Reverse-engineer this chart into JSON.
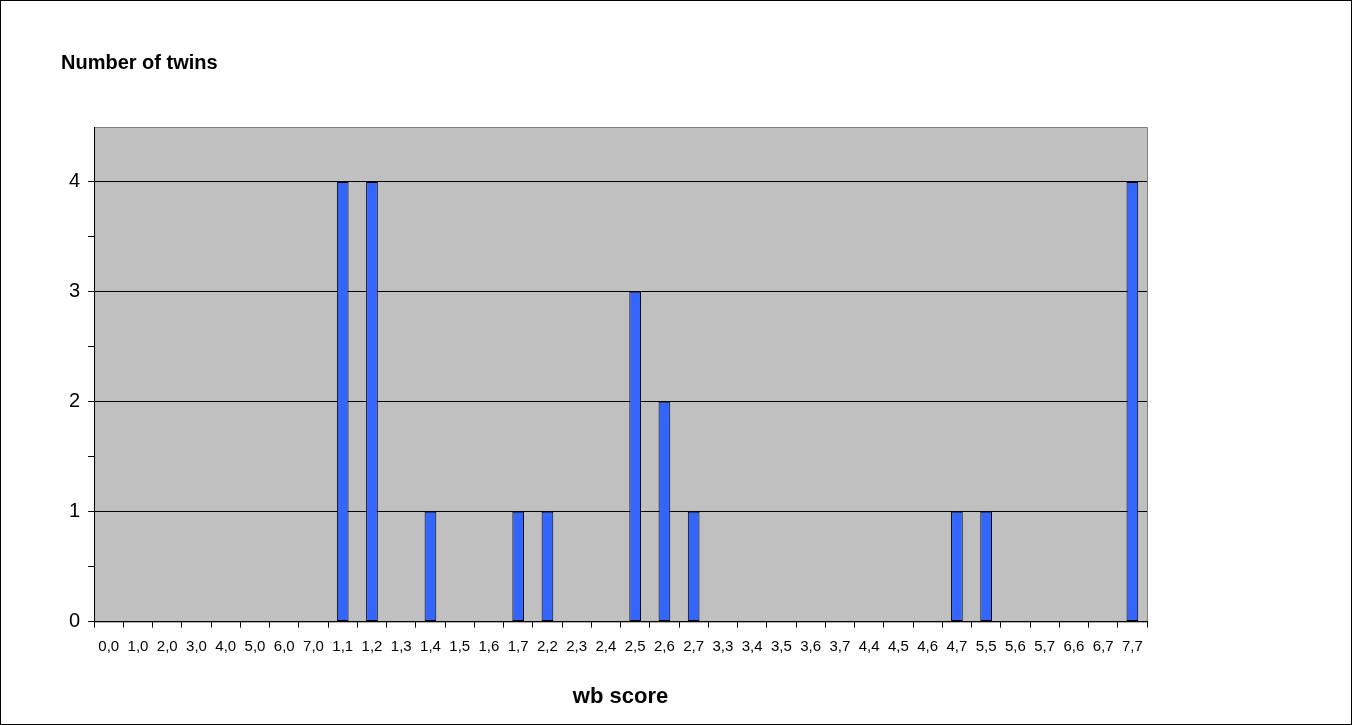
{
  "chart_data": {
    "type": "bar",
    "title": "Number of twins",
    "xlabel": "wb score",
    "categories": [
      "0,0",
      "1,0",
      "2,0",
      "3,0",
      "4,0",
      "5,0",
      "6,0",
      "7,0",
      "1,1",
      "1,2",
      "1,3",
      "1,4",
      "1,5",
      "1,6",
      "1,7",
      "2,2",
      "2,3",
      "2,4",
      "2,5",
      "2,6",
      "2,7",
      "3,3",
      "3,4",
      "3,5",
      "3,6",
      "3,7",
      "4,4",
      "4,5",
      "4,6",
      "4,7",
      "5,5",
      "5,6",
      "5,7",
      "6,6",
      "6,7",
      "7,7"
    ],
    "values": [
      0,
      0,
      0,
      0,
      0,
      0,
      0,
      0,
      4,
      4,
      0,
      1,
      0,
      0,
      1,
      1,
      0,
      0,
      3,
      2,
      1,
      0,
      0,
      0,
      0,
      0,
      0,
      0,
      0,
      1,
      1,
      0,
      0,
      0,
      0,
      4
    ],
    "color": "#3366ff",
    "ylim": [
      0,
      4.5
    ],
    "yticks": [
      0,
      {
        "value": 0.5,
        "label": null
      },
      1,
      {
        "value": 1.5,
        "label": null
      },
      2,
      {
        "value": 2.5,
        "label": null
      },
      3,
      {
        "value": 3.5,
        "label": null
      },
      4
    ],
    "grid": "y",
    "legend": false
  }
}
